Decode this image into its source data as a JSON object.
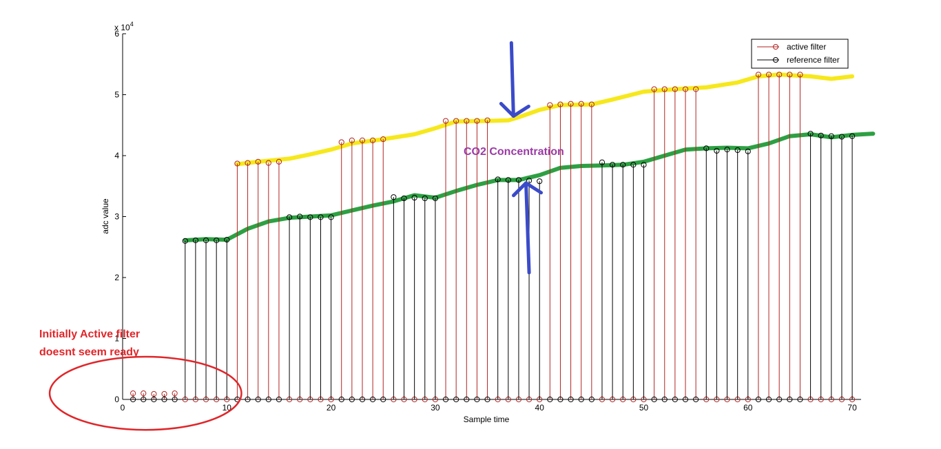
{
  "chart_data": {
    "type": "stem",
    "xlabel": "Sample time",
    "ylabel": "adc value",
    "exponent_label": "x 10",
    "exponent_power": "4",
    "xlim": [
      0,
      72
    ],
    "ylim": [
      0,
      6
    ],
    "xticks": [
      "0",
      "10",
      "20",
      "30",
      "40",
      "50",
      "60",
      "70"
    ],
    "yticks": [
      "0",
      "1",
      "2",
      "3",
      "4",
      "5",
      "6"
    ],
    "legend_position": "top-right",
    "series": [
      {
        "name": "active filter",
        "color": "#b22222",
        "x": [
          1,
          2,
          3,
          4,
          5,
          6,
          7,
          8,
          9,
          10,
          11,
          12,
          13,
          14,
          15,
          16,
          17,
          18,
          19,
          20,
          21,
          22,
          23,
          24,
          25,
          26,
          27,
          28,
          29,
          30,
          31,
          32,
          33,
          34,
          35,
          36,
          37,
          38,
          39,
          40,
          41,
          42,
          43,
          44,
          45,
          46,
          47,
          48,
          49,
          50,
          51,
          52,
          53,
          54,
          55,
          56,
          57,
          58,
          59,
          60,
          61,
          62,
          63,
          64,
          65,
          66,
          67,
          68,
          69,
          70
        ],
        "values": [
          0.1,
          0.1,
          0.09,
          0.09,
          0.1,
          0,
          0,
          0,
          0,
          0,
          3.87,
          3.88,
          3.9,
          3.88,
          3.9,
          0,
          0,
          0,
          0,
          0,
          4.22,
          4.25,
          4.25,
          4.25,
          4.27,
          0,
          0,
          0,
          0,
          0,
          4.57,
          4.57,
          4.57,
          4.57,
          4.58,
          0,
          0,
          0,
          0,
          0,
          4.83,
          4.84,
          4.85,
          4.85,
          4.84,
          0,
          0,
          0,
          0,
          0,
          5.09,
          5.09,
          5.09,
          5.09,
          5.09,
          0,
          0,
          0,
          0,
          0,
          5.33,
          5.33,
          5.33,
          5.33,
          5.33,
          0,
          0,
          0,
          0,
          0
        ]
      },
      {
        "name": "reference filter",
        "color": "#000000",
        "x": [
          1,
          2,
          3,
          4,
          5,
          6,
          7,
          8,
          9,
          10,
          11,
          12,
          13,
          14,
          15,
          16,
          17,
          18,
          19,
          20,
          21,
          22,
          23,
          24,
          25,
          26,
          27,
          28,
          29,
          30,
          31,
          32,
          33,
          34,
          35,
          36,
          37,
          38,
          39,
          40,
          41,
          42,
          43,
          44,
          45,
          46,
          47,
          48,
          49,
          50,
          51,
          52,
          53,
          54,
          55,
          56,
          57,
          58,
          59,
          60,
          61,
          62,
          63,
          64,
          65,
          66,
          67,
          68,
          69,
          70
        ],
        "values": [
          0,
          0,
          0,
          0,
          0,
          2.6,
          2.61,
          2.61,
          2.61,
          2.62,
          0,
          0,
          0,
          0,
          0,
          2.99,
          3.0,
          2.99,
          2.99,
          2.99,
          0,
          0,
          0,
          0,
          0,
          3.32,
          3.3,
          3.31,
          3.3,
          3.3,
          0,
          0,
          0,
          0,
          0,
          3.61,
          3.6,
          3.6,
          3.59,
          3.58,
          0,
          0,
          0,
          0,
          0,
          3.89,
          3.85,
          3.85,
          3.85,
          3.85,
          0,
          0,
          0,
          0,
          0,
          4.12,
          4.08,
          4.1,
          4.09,
          4.07,
          0,
          0,
          0,
          0,
          0,
          4.36,
          4.33,
          4.32,
          4.31,
          4.32
        ]
      }
    ],
    "overlays": [
      {
        "color": "#f6e81c",
        "points": [
          [
            11,
            3.86
          ],
          [
            13,
            3.9
          ],
          [
            16,
            3.95
          ],
          [
            18,
            4.02
          ],
          [
            20,
            4.1
          ],
          [
            22,
            4.2
          ],
          [
            25,
            4.27
          ],
          [
            28,
            4.35
          ],
          [
            30,
            4.45
          ],
          [
            32,
            4.56
          ],
          [
            35,
            4.57
          ],
          [
            37,
            4.58
          ],
          [
            38,
            4.63
          ],
          [
            40,
            4.75
          ],
          [
            42,
            4.83
          ],
          [
            45,
            4.84
          ],
          [
            47,
            4.92
          ],
          [
            50,
            5.05
          ],
          [
            53,
            5.09
          ],
          [
            56,
            5.12
          ],
          [
            59,
            5.2
          ],
          [
            61,
            5.3
          ],
          [
            63,
            5.33
          ],
          [
            66,
            5.3
          ],
          [
            68,
            5.26
          ],
          [
            70,
            5.3
          ]
        ]
      },
      {
        "color": "#2ea043",
        "points": [
          [
            6,
            2.61
          ],
          [
            8,
            2.63
          ],
          [
            10,
            2.62
          ],
          [
            12,
            2.8
          ],
          [
            14,
            2.92
          ],
          [
            16,
            2.98
          ],
          [
            18,
            3.0
          ],
          [
            20,
            3.02
          ],
          [
            22,
            3.1
          ],
          [
            24,
            3.18
          ],
          [
            26,
            3.25
          ],
          [
            28,
            3.35
          ],
          [
            30,
            3.31
          ],
          [
            32,
            3.42
          ],
          [
            34,
            3.52
          ],
          [
            36,
            3.6
          ],
          [
            38,
            3.6
          ],
          [
            40,
            3.68
          ],
          [
            42,
            3.8
          ],
          [
            44,
            3.83
          ],
          [
            46,
            3.84
          ],
          [
            48,
            3.85
          ],
          [
            50,
            3.9
          ],
          [
            52,
            4.0
          ],
          [
            54,
            4.1
          ],
          [
            56,
            4.12
          ],
          [
            58,
            4.13
          ],
          [
            60,
            4.12
          ],
          [
            62,
            4.2
          ],
          [
            64,
            4.32
          ],
          [
            66,
            4.35
          ],
          [
            68,
            4.3
          ],
          [
            70,
            4.34
          ],
          [
            72,
            4.36
          ]
        ]
      }
    ],
    "arrows": [
      {
        "color": "#3a4bc9",
        "from": [
          37.3,
          5.85
        ],
        "to": [
          37.5,
          4.65
        ],
        "direction": "down"
      },
      {
        "color": "#3a4bc9",
        "from": [
          39,
          2.08
        ],
        "to": [
          38.7,
          3.55
        ],
        "direction": "up"
      }
    ],
    "annotations": [
      {
        "text": "CO2 Concentration",
        "x": 33,
        "y": 3.97,
        "color": "#9b3aa6"
      },
      {
        "text": "Initially Active filter",
        "x": -8,
        "y": 1.05,
        "color": "#e0262a"
      },
      {
        "text": "doesnt seem ready",
        "x": -8,
        "y": 0.72,
        "color": "#e0262a"
      }
    ],
    "highlight_ellipse": {
      "cx": 2.2,
      "cy": 0.1,
      "rx": 9.2,
      "ry": 0.6,
      "color": "#e0262a"
    }
  }
}
